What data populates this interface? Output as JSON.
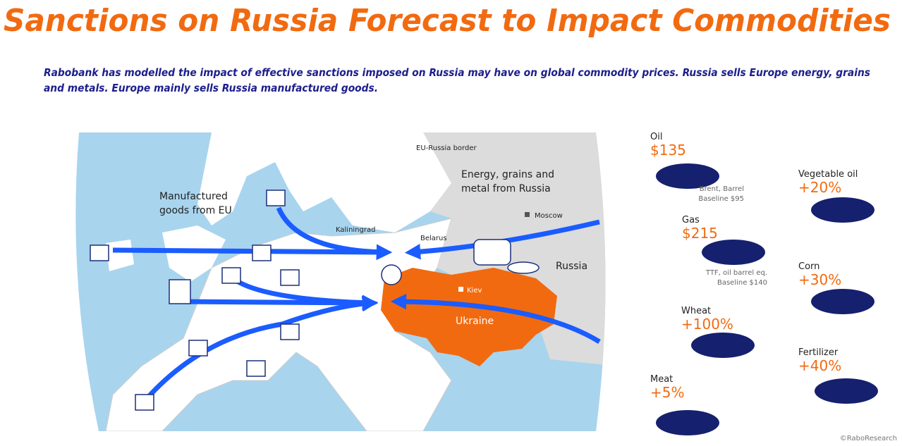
{
  "header": {
    "title": "Sanctions on Russia Forecast to Impact Commodities",
    "subtitle_lines": [
      "Rabobank has modelled the impact of effective sanctions imposed on Russia may have on global commodity prices. Russia sells Europe energy, grains",
      "and metals. Europe mainly sells Russia manufactured goods."
    ]
  },
  "map": {
    "border": "EU-Russia border",
    "flow_russia_lines": [
      "Energy, grains and",
      "metal from Russia"
    ],
    "moscow": "Moscow",
    "flow_eu_lines": [
      "Manufactured",
      "goods from EU"
    ],
    "kaliningrad": "Kaliningrad",
    "belarus": "Belarus",
    "russia": "Russia",
    "kiev": "Kiev",
    "ukraine": "Ukraine"
  },
  "commodities": [
    {
      "name": "Oil",
      "value": "$135",
      "note_lines": [
        "Brent, Barrel",
        "Baseline $95"
      ]
    },
    {
      "name": "Gas",
      "value": "$215",
      "note_lines": [
        "TTF, oil barrel eq.",
        "Baseline $140"
      ]
    },
    {
      "name": "Wheat",
      "value": "+100%"
    },
    {
      "name": "Meat",
      "value": "+5%"
    },
    {
      "name": "Vegetable oil",
      "value": "+20%"
    },
    {
      "name": "Corn",
      "value": "+30%"
    },
    {
      "name": "Fertilizer",
      "value": "+40%"
    }
  ],
  "credit": "©RaboResearch"
}
